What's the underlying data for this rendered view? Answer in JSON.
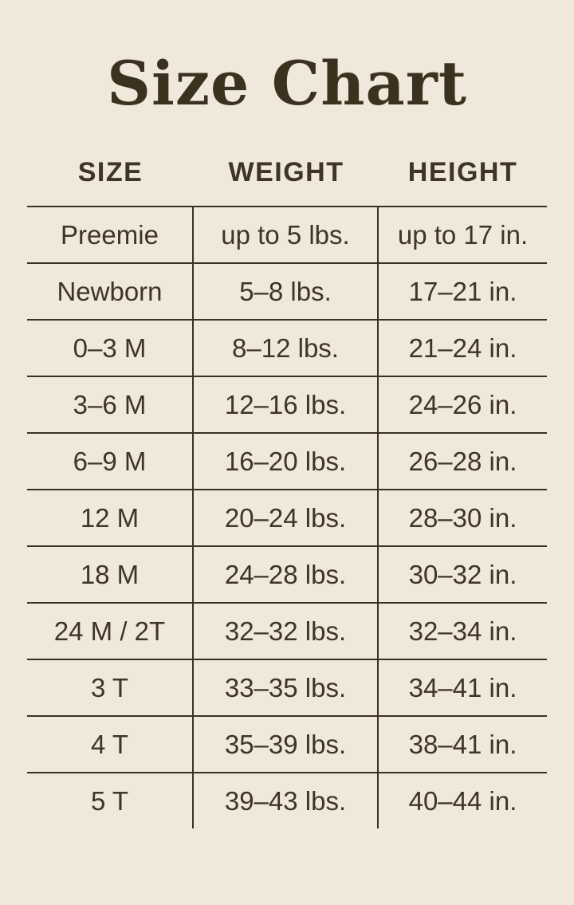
{
  "page": {
    "title": "Size Chart"
  },
  "colors": {
    "background": "#EFE8DB",
    "ink": "#3E3427",
    "line": "#3A3124",
    "title": "#3B311F"
  },
  "chart_data": {
    "type": "table",
    "title": "Size Chart",
    "columns": [
      "SIZE",
      "WEIGHT",
      "HEIGHT"
    ],
    "column_keys": [
      "size",
      "weight",
      "height"
    ],
    "rows": [
      [
        "Preemie",
        "up to 5 lbs.",
        "up to 17 in."
      ],
      [
        "Newborn",
        "5–8 lbs.",
        "17–21 in."
      ],
      [
        "0–3 M",
        "8–12 lbs.",
        "21–24 in."
      ],
      [
        "3–6 M",
        "12–16 lbs.",
        "24–26 in."
      ],
      [
        "6–9 M",
        "16–20 lbs.",
        "26–28 in."
      ],
      [
        "12 M",
        "20–24 lbs.",
        "28–30 in."
      ],
      [
        "18 M",
        "24–28 lbs.",
        "30–32 in."
      ],
      [
        "24 M / 2T",
        "32–32 lbs.",
        "32–34 in."
      ],
      [
        "3 T",
        "33–35 lbs.",
        "34–41 in."
      ],
      [
        "4 T",
        "35–39 lbs.",
        "38–41 in."
      ],
      [
        "5 T",
        "39–43 lbs.",
        "40–44 in."
      ]
    ],
    "layout": {
      "grid": "horizontal row separators and inner vertical dividers only",
      "outer_left_right_borders": false,
      "bottom_border": false
    }
  }
}
